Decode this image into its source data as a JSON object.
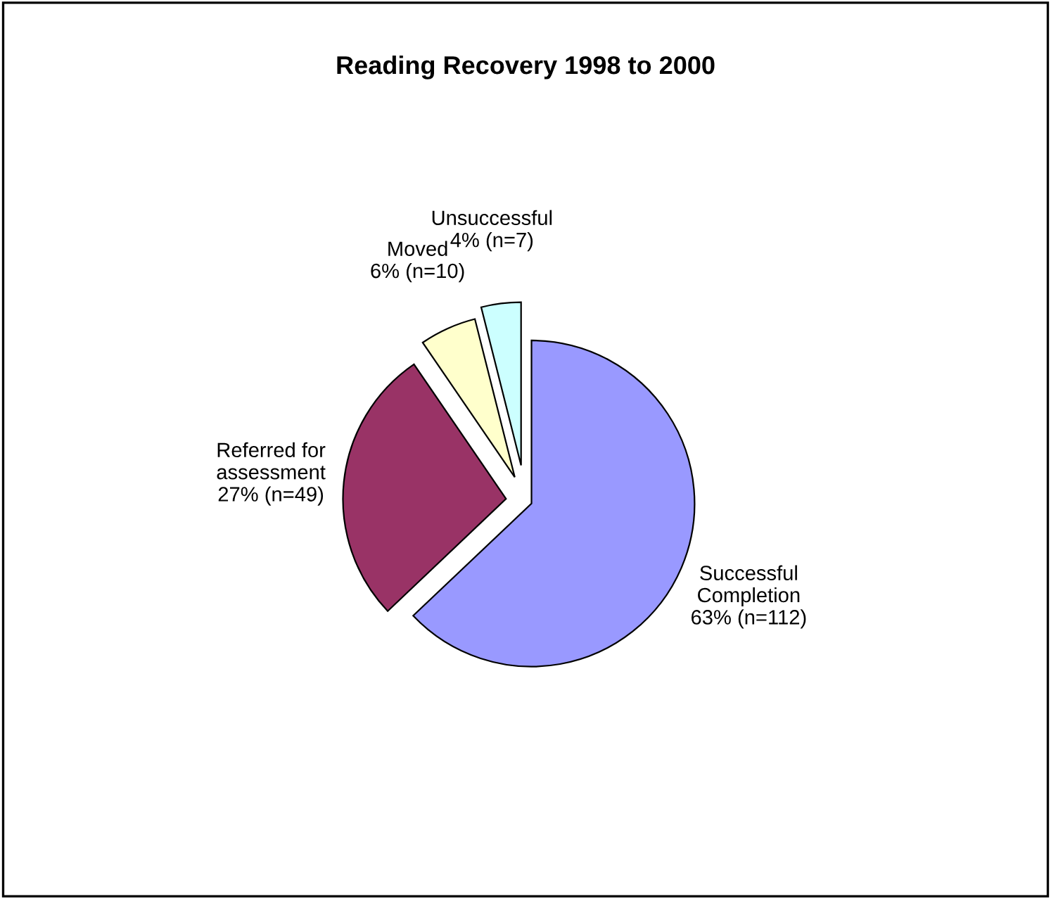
{
  "chart_data": {
    "type": "pie",
    "title": "Reading Recovery 1998 to 2000",
    "categories": [
      "Successful\nCompletion",
      "Referred for\nassessment",
      "Moved",
      "Unsuccessful"
    ],
    "values": [
      112,
      49,
      10,
      7
    ],
    "value_labels": [
      "63% (n=112)",
      "27% (n=49)",
      "6% (n=10)",
      "4% (n=7)"
    ],
    "colors": [
      "#9999ff",
      "#993366",
      "#ffffcc",
      "#ccffff"
    ],
    "legend": false
  }
}
